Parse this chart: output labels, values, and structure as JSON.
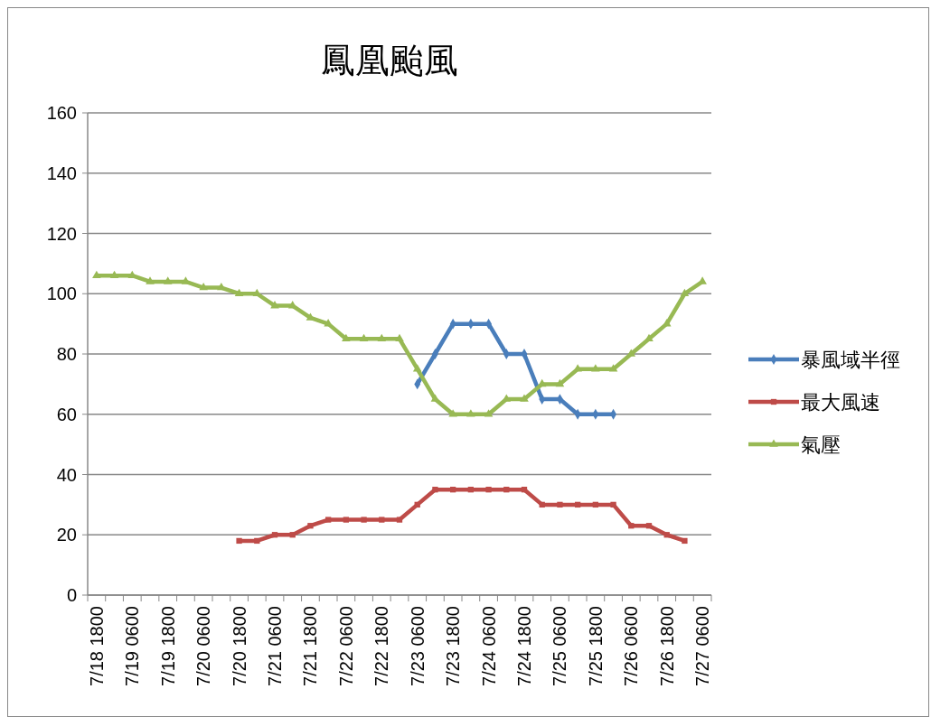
{
  "chart_data": {
    "type": "line",
    "title": "鳳凰颱風",
    "categories": [
      "7/18 1800",
      null,
      "7/19 0600",
      null,
      "7/19 1800",
      null,
      "7/20 0600",
      null,
      "7/20 1800",
      null,
      "7/21 0600",
      null,
      "7/21 1800",
      null,
      "7/22 0600",
      null,
      "7/22 1800",
      null,
      "7/23 0600",
      null,
      "7/23 1800",
      null,
      "7/24 0600",
      null,
      "7/24 1800",
      null,
      "7/25 0600",
      null,
      "7/25 1800",
      null,
      "7/26 0600",
      null,
      "7/26 1800",
      null,
      "7/27 0600"
    ],
    "series": [
      {
        "name": "暴風域半徑",
        "color": "#4a7ebb",
        "marker": "diamond",
        "values": [
          null,
          null,
          null,
          null,
          null,
          null,
          null,
          null,
          null,
          null,
          null,
          null,
          null,
          null,
          null,
          null,
          null,
          null,
          70,
          80,
          90,
          90,
          90,
          80,
          80,
          65,
          65,
          60,
          60,
          60,
          null,
          null,
          null,
          null,
          null
        ]
      },
      {
        "name": "最大風速",
        "color": "#be4b48",
        "marker": "square",
        "values": [
          null,
          null,
          null,
          null,
          null,
          null,
          null,
          null,
          18,
          18,
          20,
          20,
          23,
          25,
          25,
          25,
          25,
          25,
          30,
          35,
          35,
          35,
          35,
          35,
          35,
          30,
          30,
          30,
          30,
          30,
          23,
          23,
          20,
          18,
          null
        ]
      },
      {
        "name": "氣壓",
        "color": "#98b954",
        "marker": "triangle",
        "values": [
          106,
          106,
          106,
          104,
          104,
          104,
          102,
          102,
          100,
          100,
          96,
          96,
          92,
          90,
          85,
          85,
          85,
          85,
          75,
          65,
          60,
          60,
          60,
          65,
          65,
          70,
          70,
          75,
          75,
          75,
          80,
          85,
          90,
          100,
          104
        ]
      }
    ],
    "ylim": [
      0,
      160
    ],
    "yticks": [
      0,
      20,
      40,
      60,
      80,
      100,
      120,
      140,
      160
    ],
    "grid": "y",
    "legend": "right"
  }
}
